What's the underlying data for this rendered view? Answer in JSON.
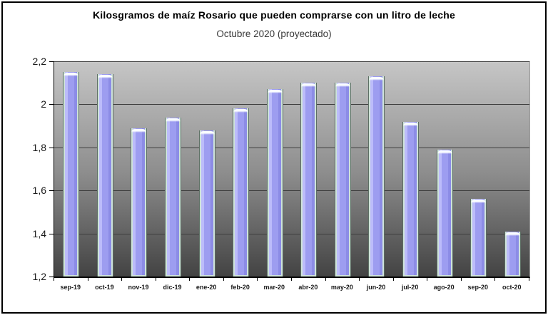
{
  "chart_data": {
    "type": "bar",
    "title": "Kilosgramos de maíz Rosario que pueden comprarse con un litro de leche",
    "subtitle": "Octubre 2020 (proyectado)",
    "categories": [
      "sep-19",
      "oct-19",
      "nov-19",
      "dic-19",
      "ene-20",
      "feb-20",
      "mar-20",
      "abr-20",
      "may-20",
      "jun-20",
      "jul-20",
      "ago-20",
      "sep-20",
      "oct-20"
    ],
    "values": [
      2.15,
      2.14,
      1.89,
      1.94,
      1.88,
      1.98,
      2.07,
      2.1,
      2.1,
      2.13,
      1.92,
      1.79,
      1.56,
      1.41
    ],
    "xlabel": "",
    "ylabel": "",
    "ylim": [
      1.2,
      2.2
    ],
    "ytick_step": 0.2,
    "ytick_labels": [
      "2,2",
      "2",
      "1,8",
      "1,6",
      "1,4",
      "1,2"
    ],
    "decimal_separator": ",",
    "grid": true,
    "legend": false,
    "layout_hints": {
      "bars_sit_on_x_axis": true,
      "plot_background": "vertical gray gradient, light top to dark bottom",
      "bar_style": "3D beveled Excel bar with pale mint edges and white top cap"
    },
    "colors": {
      "bar_fill": "#9d9df0",
      "bar_fill_light": "#bcbcfa",
      "bar_fill_dark": "#8c8ce6",
      "bar_edge": "#cfe3d9",
      "bar_outline": "#5d6f64",
      "bar_top_highlight": "#fafdff",
      "plot_bg_top": "#c6c6c6",
      "plot_bg_bottom": "#434343",
      "gridline": "#3d3d3d",
      "axis": "#000000",
      "frame_border": "#000000",
      "page_bg": "#ffffff",
      "title_color": "#000000",
      "subtitle_color": "#383838",
      "tick_label_color": "#1a1a1a"
    }
  }
}
